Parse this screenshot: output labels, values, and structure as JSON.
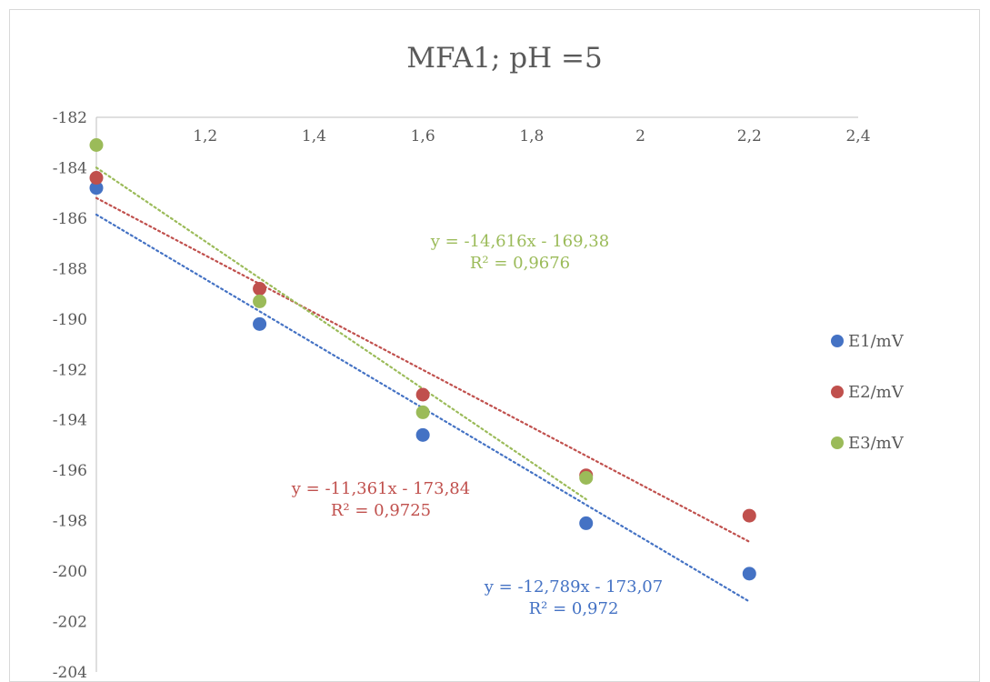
{
  "chart_data": {
    "type": "scatter",
    "title": "MFA1; pH =5",
    "xlabel": "",
    "ylabel": "",
    "xlim": [
      1,
      2.4
    ],
    "ylim": [
      -204,
      -182
    ],
    "x_ticks": [
      "1,2",
      "1,4",
      "1,6",
      "1,8",
      "2",
      "2,2",
      "2,4"
    ],
    "y_ticks": [
      "-182",
      "-184",
      "-186",
      "-188",
      "-190",
      "-192",
      "-194",
      "-196",
      "-198",
      "-200",
      "-202",
      "-204"
    ],
    "grid": false,
    "legend_position": "right",
    "series": [
      {
        "name": "E1/mV",
        "color": "#4472c4",
        "x": [
          1.0,
          1.3,
          1.6,
          1.9,
          2.2
        ],
        "y": [
          -184.8,
          -190.2,
          -194.6,
          -198.1,
          -200.1
        ],
        "trendline": {
          "slope": -12.789,
          "intercept": -173.07,
          "x_range": [
            1.0,
            2.2
          ],
          "equation": "y = -12,789x - 173,07",
          "r2": "R² = 0,972"
        }
      },
      {
        "name": "E2/mV",
        "color": "#c0504d",
        "x": [
          1.0,
          1.3,
          1.6,
          1.9,
          2.2
        ],
        "y": [
          -184.4,
          -188.8,
          -193.0,
          -196.2,
          -197.8
        ],
        "trendline": {
          "slope": -11.361,
          "intercept": -173.84,
          "x_range": [
            1.0,
            2.2
          ],
          "equation": "y = -11,361x - 173,84",
          "r2": "R² = 0,9725"
        }
      },
      {
        "name": "E3/mV",
        "color": "#9bbb59",
        "x": [
          1.0,
          1.3,
          1.6,
          1.9
        ],
        "y": [
          -183.1,
          -189.3,
          -193.7,
          -196.3
        ],
        "trendline": {
          "slope": -14.616,
          "intercept": -169.38,
          "x_range": [
            1.0,
            1.9
          ],
          "equation": "y = -14,616x - 169,38",
          "r2": "R² = 0,9676"
        }
      }
    ]
  }
}
